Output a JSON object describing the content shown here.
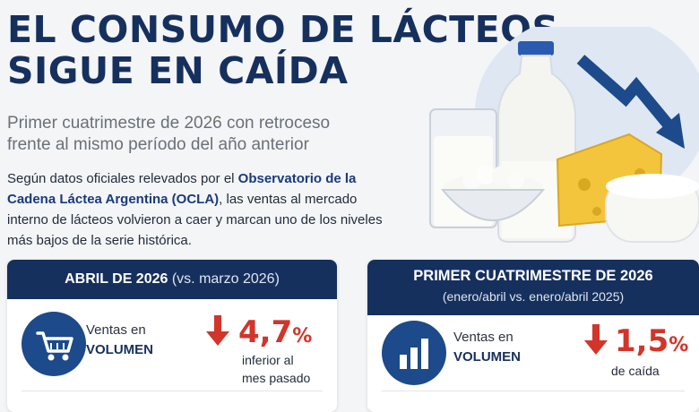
{
  "header": {
    "headline_line1": "EL CONSUMO DE LÁCTEOS",
    "headline_line2": "SIGUE EN CAÍDA",
    "subtitle_line1": "Primer cuatrimestre de 2026 con retroceso",
    "subtitle_line2": "frente al mismo período del año anterior"
  },
  "intro": {
    "part1": "Según datos oficiales relevados por el ",
    "highlight": "Observatorio de la Cadena Láctea Argentina (OCLA)",
    "part2": ", las ventas al mercado interno de lácteos volvieron a caer y marcan uno de los niveles más bajos de la serie histórica."
  },
  "card_april": {
    "title_bold": "ABRIL DE 2026",
    "title_light": " (vs. marzo 2026)",
    "label_line1": "Ventas en",
    "label_line2": "VOLUMEN",
    "value": "4,7",
    "unit": "%",
    "note_line1": "inferior al",
    "note_line2": "mes pasado",
    "icon": "shopping-cart-icon"
  },
  "card_quarter": {
    "title": "PRIMER CUATRIMESTRE DE 2026",
    "subtitle": "(enero/abril vs. enero/abril 2025)",
    "label_line1": "Ventas en",
    "label_line2": "VOLUMEN",
    "value": "1,5",
    "unit": "%",
    "note": "de caída",
    "icon": "bar-chart-icon"
  },
  "colors": {
    "navy": "#16305e",
    "accent_red": "#d2352a",
    "icon_blue": "#1c4a8a"
  }
}
